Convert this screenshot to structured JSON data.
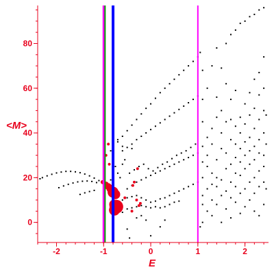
{
  "chart_data": {
    "type": "scatter",
    "xlabel": "E",
    "ylabel": "<M>",
    "xlim": [
      -2.4,
      2.5
    ],
    "ylim": [
      -9,
      97
    ],
    "xticks": [
      -2,
      -1,
      0,
      1,
      2
    ],
    "yticks": [
      0,
      20,
      40,
      60,
      80
    ],
    "grid": false,
    "colors": {
      "axis": "#e8001c",
      "points": "#000000",
      "highlight": "#e8001c",
      "line_green": "#00a000",
      "line_magenta": "#ff00ff",
      "line_blue": "#0000ff"
    },
    "vertical_lines": [
      {
        "x": -1.0,
        "color": "#ff00ff",
        "width": 3
      },
      {
        "x": -0.97,
        "color": "#00a000",
        "width": 2
      },
      {
        "x": -0.8,
        "color": "#0000ff",
        "width": 4
      },
      {
        "x": 1.0,
        "color": "#ff00ff",
        "width": 2
      }
    ],
    "series": [
      {
        "values": [
          [
            -2.35,
            19.5
          ],
          [
            -2.3,
            20
          ],
          [
            -2.2,
            20.8
          ],
          [
            -2.1,
            21.5
          ],
          [
            -2.0,
            22.1
          ],
          [
            -1.9,
            22.5
          ],
          [
            -1.8,
            22.8
          ],
          [
            -1.7,
            22.8
          ],
          [
            -1.6,
            22.6
          ],
          [
            -1.5,
            22.2
          ],
          [
            -1.4,
            21.6
          ],
          [
            -1.3,
            20.8
          ],
          [
            -1.2,
            19.8
          ],
          [
            -1.1,
            18.7
          ],
          [
            -1.0,
            17.5
          ],
          [
            -1.95,
            15.5
          ],
          [
            -1.85,
            16.3
          ],
          [
            -1.75,
            17
          ],
          [
            -1.65,
            17.6
          ],
          [
            -1.55,
            18.1
          ],
          [
            -1.45,
            18.4
          ],
          [
            -1.35,
            18.5
          ],
          [
            -1.25,
            18.3
          ],
          [
            -1.15,
            17.8
          ],
          [
            -1.5,
            12.5
          ],
          [
            -1.4,
            13.2
          ],
          [
            -1.3,
            13.8
          ],
          [
            -1.2,
            14.3
          ],
          [
            -0.6,
            4.5
          ],
          [
            -0.5,
            6
          ],
          [
            -0.4,
            6.5
          ],
          [
            -0.3,
            7
          ],
          [
            -0.2,
            7.5
          ],
          [
            -0.1,
            7
          ],
          [
            0.0,
            6.5
          ],
          [
            0.1,
            7
          ],
          [
            0.2,
            6.5
          ],
          [
            0.3,
            7
          ],
          [
            0.4,
            8
          ],
          [
            0.5,
            9
          ],
          [
            0.6,
            9.5
          ],
          [
            -0.6,
            10
          ],
          [
            -0.5,
            11
          ],
          [
            -0.4,
            11.5
          ],
          [
            -0.3,
            12
          ],
          [
            -0.2,
            11
          ],
          [
            -0.1,
            10
          ],
          [
            0.0,
            9
          ],
          [
            0.1,
            9.5
          ],
          [
            0.2,
            10.5
          ],
          [
            0.3,
            11
          ],
          [
            0.4,
            12
          ],
          [
            0.5,
            13
          ],
          [
            0.6,
            14
          ],
          [
            0.7,
            15
          ],
          [
            0.8,
            16
          ],
          [
            0.9,
            17
          ],
          [
            1.0,
            18
          ],
          [
            -0.5,
            15
          ],
          [
            -0.4,
            16.5
          ],
          [
            -0.3,
            18
          ],
          [
            -0.2,
            19
          ],
          [
            -0.1,
            20
          ],
          [
            0.0,
            21
          ],
          [
            0.1,
            22
          ],
          [
            0.2,
            23
          ],
          [
            0.3,
            24
          ],
          [
            0.4,
            25
          ],
          [
            0.5,
            26
          ],
          [
            0.6,
            27
          ],
          [
            0.7,
            28
          ],
          [
            0.8,
            29
          ],
          [
            0.9,
            30
          ],
          [
            1.0,
            31
          ],
          [
            -0.45,
            22
          ],
          [
            -0.35,
            23.5
          ],
          [
            -0.25,
            25
          ],
          [
            -0.15,
            26
          ],
          [
            -0.05,
            24
          ],
          [
            0.05,
            23
          ],
          [
            0.15,
            24.5
          ],
          [
            0.25,
            26
          ],
          [
            0.35,
            27
          ],
          [
            0.45,
            28.5
          ],
          [
            0.55,
            30
          ],
          [
            0.65,
            31
          ],
          [
            0.75,
            32
          ],
          [
            0.85,
            33.5
          ],
          [
            0.95,
            35
          ],
          [
            -0.6,
            32
          ],
          [
            -0.5,
            33.5
          ],
          [
            -0.4,
            35
          ],
          [
            -0.3,
            37
          ],
          [
            -0.2,
            38.5
          ],
          [
            -0.1,
            40
          ],
          [
            0.0,
            41.5
          ],
          [
            0.1,
            43
          ],
          [
            0.2,
            44.5
          ],
          [
            0.3,
            46
          ],
          [
            0.4,
            47.5
          ],
          [
            0.5,
            49
          ],
          [
            0.6,
            50.5
          ],
          [
            0.7,
            52
          ],
          [
            0.8,
            53.5
          ],
          [
            0.9,
            55
          ],
          [
            1.0,
            56.5
          ],
          [
            -0.7,
            36
          ],
          [
            -0.6,
            38.5
          ],
          [
            -0.5,
            41
          ],
          [
            -0.4,
            43.5
          ],
          [
            -0.3,
            46
          ],
          [
            -0.2,
            48.5
          ],
          [
            -0.1,
            51
          ],
          [
            0.0,
            53
          ],
          [
            0.1,
            55.5
          ],
          [
            0.2,
            58
          ],
          [
            0.3,
            60
          ],
          [
            0.4,
            62
          ],
          [
            0.5,
            64
          ],
          [
            0.6,
            66
          ],
          [
            0.7,
            68
          ],
          [
            0.8,
            70
          ],
          [
            0.9,
            72
          ],
          [
            1.0,
            74
          ],
          [
            -0.75,
            25
          ],
          [
            -0.7,
            22
          ],
          [
            -0.65,
            20
          ],
          [
            -0.6,
            26
          ],
          [
            -0.55,
            28
          ],
          [
            -0.8,
            30
          ],
          [
            -0.85,
            32
          ],
          [
            -0.85,
            19
          ],
          [
            -0.6,
            34
          ],
          [
            -0.4,
            33
          ],
          [
            -0.7,
            37
          ],
          [
            -0.45,
            -7
          ],
          [
            -0.5,
            -3
          ],
          [
            -0.3,
            2
          ],
          [
            -0.2,
            3
          ],
          [
            -0.1,
            1
          ],
          [
            0.0,
            -6
          ],
          [
            0.2,
            -2
          ],
          [
            0.3,
            1
          ],
          [
            1.05,
            76
          ],
          [
            1.05,
            -2
          ],
          [
            1.1,
            0
          ],
          [
            1.1,
            8
          ],
          [
            1.1,
            12
          ],
          [
            1.1,
            20
          ],
          [
            1.1,
            27
          ],
          [
            1.1,
            34
          ],
          [
            1.1,
            45
          ],
          [
            1.1,
            55
          ],
          [
            1.1,
            68
          ],
          [
            1.2,
            5
          ],
          [
            1.2,
            15
          ],
          [
            1.2,
            25
          ],
          [
            1.2,
            30
          ],
          [
            1.2,
            38
          ],
          [
            1.2,
            60
          ],
          [
            1.3,
            3
          ],
          [
            1.3,
            10
          ],
          [
            1.3,
            17
          ],
          [
            1.3,
            22
          ],
          [
            1.3,
            35
          ],
          [
            1.3,
            42
          ],
          [
            1.3,
            70
          ],
          [
            1.4,
            8
          ],
          [
            1.4,
            16
          ],
          [
            1.4,
            20
          ],
          [
            1.4,
            28
          ],
          [
            1.4,
            47
          ],
          [
            1.4,
            56
          ],
          [
            1.4,
            78
          ],
          [
            1.5,
            0
          ],
          [
            1.5,
            12
          ],
          [
            1.5,
            19
          ],
          [
            1.5,
            33
          ],
          [
            1.5,
            40
          ],
          [
            1.5,
            50
          ],
          [
            1.5,
            69
          ],
          [
            1.6,
            6
          ],
          [
            1.6,
            14
          ],
          [
            1.6,
            24
          ],
          [
            1.6,
            31
          ],
          [
            1.6,
            45
          ],
          [
            1.6,
            62
          ],
          [
            1.6,
            80
          ],
          [
            1.7,
            2
          ],
          [
            1.7,
            11
          ],
          [
            1.7,
            18
          ],
          [
            1.7,
            26
          ],
          [
            1.7,
            37
          ],
          [
            1.7,
            46
          ],
          [
            1.7,
            55
          ],
          [
            1.7,
            84
          ],
          [
            1.8,
            9
          ],
          [
            1.8,
            16
          ],
          [
            1.8,
            22
          ],
          [
            1.8,
            29
          ],
          [
            1.8,
            35
          ],
          [
            1.8,
            43
          ],
          [
            1.8,
            59
          ],
          [
            1.8,
            86
          ],
          [
            1.9,
            4
          ],
          [
            1.9,
            13
          ],
          [
            1.9,
            21
          ],
          [
            1.9,
            27
          ],
          [
            1.9,
            33
          ],
          [
            1.9,
            40
          ],
          [
            1.9,
            47
          ],
          [
            1.9,
            89
          ],
          [
            2.0,
            7
          ],
          [
            2.0,
            15
          ],
          [
            2.0,
            24
          ],
          [
            2.0,
            30
          ],
          [
            2.0,
            36
          ],
          [
            2.0,
            44
          ],
          [
            2.0,
            53
          ],
          [
            2.0,
            90
          ],
          [
            2.1,
            10
          ],
          [
            2.1,
            18
          ],
          [
            2.1,
            26
          ],
          [
            2.1,
            32
          ],
          [
            2.1,
            38
          ],
          [
            2.1,
            48
          ],
          [
            2.1,
            58
          ],
          [
            2.1,
            92
          ],
          [
            2.2,
            5
          ],
          [
            2.2,
            13
          ],
          [
            2.2,
            20
          ],
          [
            2.2,
            28
          ],
          [
            2.2,
            34
          ],
          [
            2.2,
            42
          ],
          [
            2.2,
            51
          ],
          [
            2.2,
            64
          ],
          [
            2.2,
            93
          ],
          [
            2.3,
            3
          ],
          [
            2.3,
            16
          ],
          [
            2.3,
            23
          ],
          [
            2.3,
            31
          ],
          [
            2.3,
            37
          ],
          [
            2.3,
            46
          ],
          [
            2.3,
            57
          ],
          [
            2.3,
            67
          ],
          [
            2.3,
            95
          ],
          [
            2.4,
            8
          ],
          [
            2.4,
            18
          ],
          [
            2.4,
            25
          ],
          [
            2.4,
            30
          ],
          [
            2.4,
            40
          ],
          [
            2.4,
            50
          ],
          [
            2.4,
            60
          ],
          [
            2.4,
            74
          ],
          [
            2.4,
            96
          ],
          [
            2.45,
            15
          ],
          [
            2.45,
            35
          ],
          [
            2.45,
            48
          ]
        ]
      },
      {
        "values": [
          [
            -1.02,
            18,
            3
          ],
          [
            -0.95,
            17,
            4
          ],
          [
            -0.9,
            16,
            5
          ],
          [
            -0.85,
            15,
            6
          ],
          [
            -0.8,
            13.5,
            8
          ],
          [
            -0.75,
            12.5,
            7
          ],
          [
            -0.73,
            7,
            10
          ],
          [
            -0.77,
            5.5,
            8
          ],
          [
            -0.78,
            8,
            7
          ],
          [
            -0.95,
            30,
            2
          ],
          [
            -0.9,
            35,
            2
          ],
          [
            -0.88,
            26,
            2
          ],
          [
            -0.35,
            18,
            2
          ],
          [
            -0.38,
            16.5,
            2
          ],
          [
            -0.28,
            24,
            2
          ],
          [
            -0.3,
            10,
            2
          ],
          [
            -0.25,
            7.5,
            2
          ],
          [
            -0.22,
            8.5,
            2
          ],
          [
            -0.55,
            11,
            2
          ],
          [
            -0.4,
            5,
            2
          ]
        ]
      }
    ]
  }
}
